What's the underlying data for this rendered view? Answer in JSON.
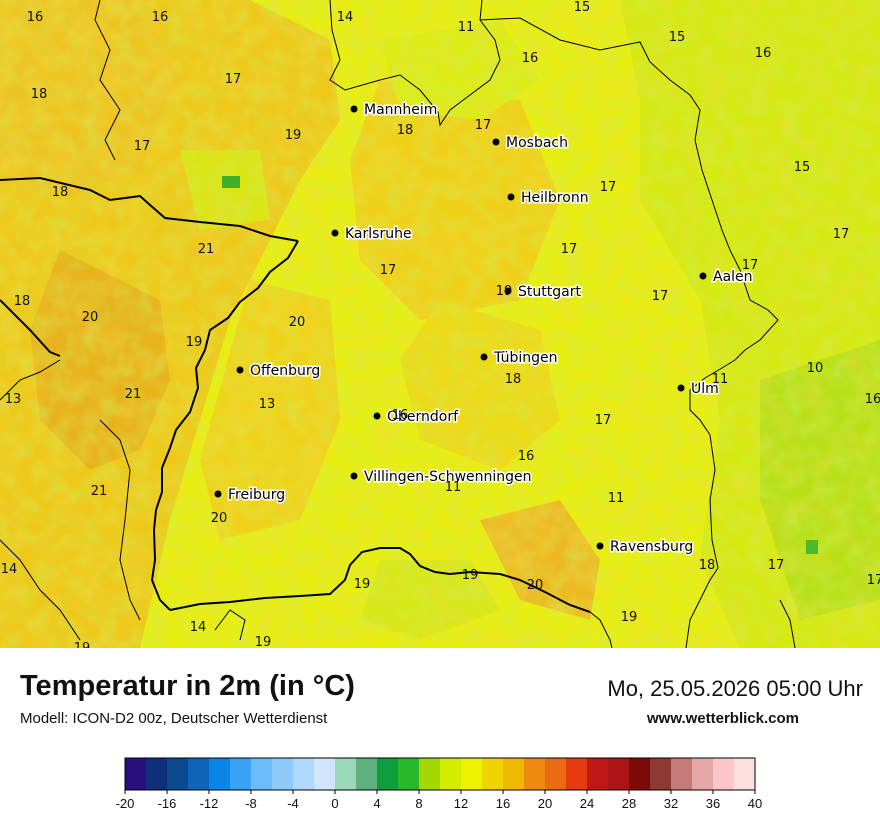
{
  "map": {
    "cities": [
      {
        "name": "Mannheim"
      },
      {
        "name": "Mosbach"
      },
      {
        "name": "Heilbronn"
      },
      {
        "name": "Karlsruhe"
      },
      {
        "name": "Aalen"
      },
      {
        "name": "Stuttgart"
      },
      {
        "name": "Tübingen"
      },
      {
        "name": "Offenburg"
      },
      {
        "name": "Ulm"
      },
      {
        "name": "Oberndorf"
      },
      {
        "name": "Villingen-Schwenningen"
      },
      {
        "name": "Freiburg"
      },
      {
        "name": "Ravensburg"
      }
    ],
    "temperature_values": [
      "16",
      "16",
      "14",
      "11",
      "15",
      "16",
      "15",
      "16",
      "17",
      "18",
      "18",
      "19",
      "17",
      "17",
      "17",
      "15",
      "18",
      "17",
      "21",
      "17",
      "17",
      "17",
      "18",
      "19",
      "17",
      "20",
      "20",
      "19",
      "18",
      "11",
      "10",
      "13",
      "21",
      "13",
      "16",
      "17",
      "16",
      "16",
      "11",
      "21",
      "11",
      "20",
      "18",
      "17",
      "14",
      "19",
      "19",
      "20",
      "19",
      "17",
      "14",
      "19",
      "19"
    ]
  },
  "footer": {
    "title": "Temperatur in 2m (in °C)",
    "subtitle": "Modell: ICON-D2 00z, Deutscher Wetterdienst",
    "datetime": "Mo, 25.05.2026 05:00 Uhr",
    "website": "www.wetterblick.com"
  },
  "legend": {
    "tick_labels": [
      "-20",
      "-16",
      "-12",
      "-8",
      "-4",
      "0",
      "4",
      "8",
      "12",
      "16",
      "20",
      "24",
      "28",
      "32",
      "36",
      "40"
    ],
    "colors": [
      "#2a0f7f",
      "#0f2f7a",
      "#0b4a8f",
      "#0f63b8",
      "#0a86e6",
      "#3aa2f5",
      "#6bbaf9",
      "#8ecafb",
      "#b0d8fc",
      "#cfe6fd",
      "#9ad9b8",
      "#60b080",
      "#0f9e3e",
      "#29b82a",
      "#a0d800",
      "#d4ec00",
      "#ecf200",
      "#f0d400",
      "#f0b800",
      "#ee8a10",
      "#ec6a12",
      "#e63a10",
      "#c21616",
      "#ae1416",
      "#7e0a08",
      "#8e3a34",
      "#c47a76",
      "#e6a8a6",
      "#fcc6c6",
      "#fde0e0"
    ]
  }
}
